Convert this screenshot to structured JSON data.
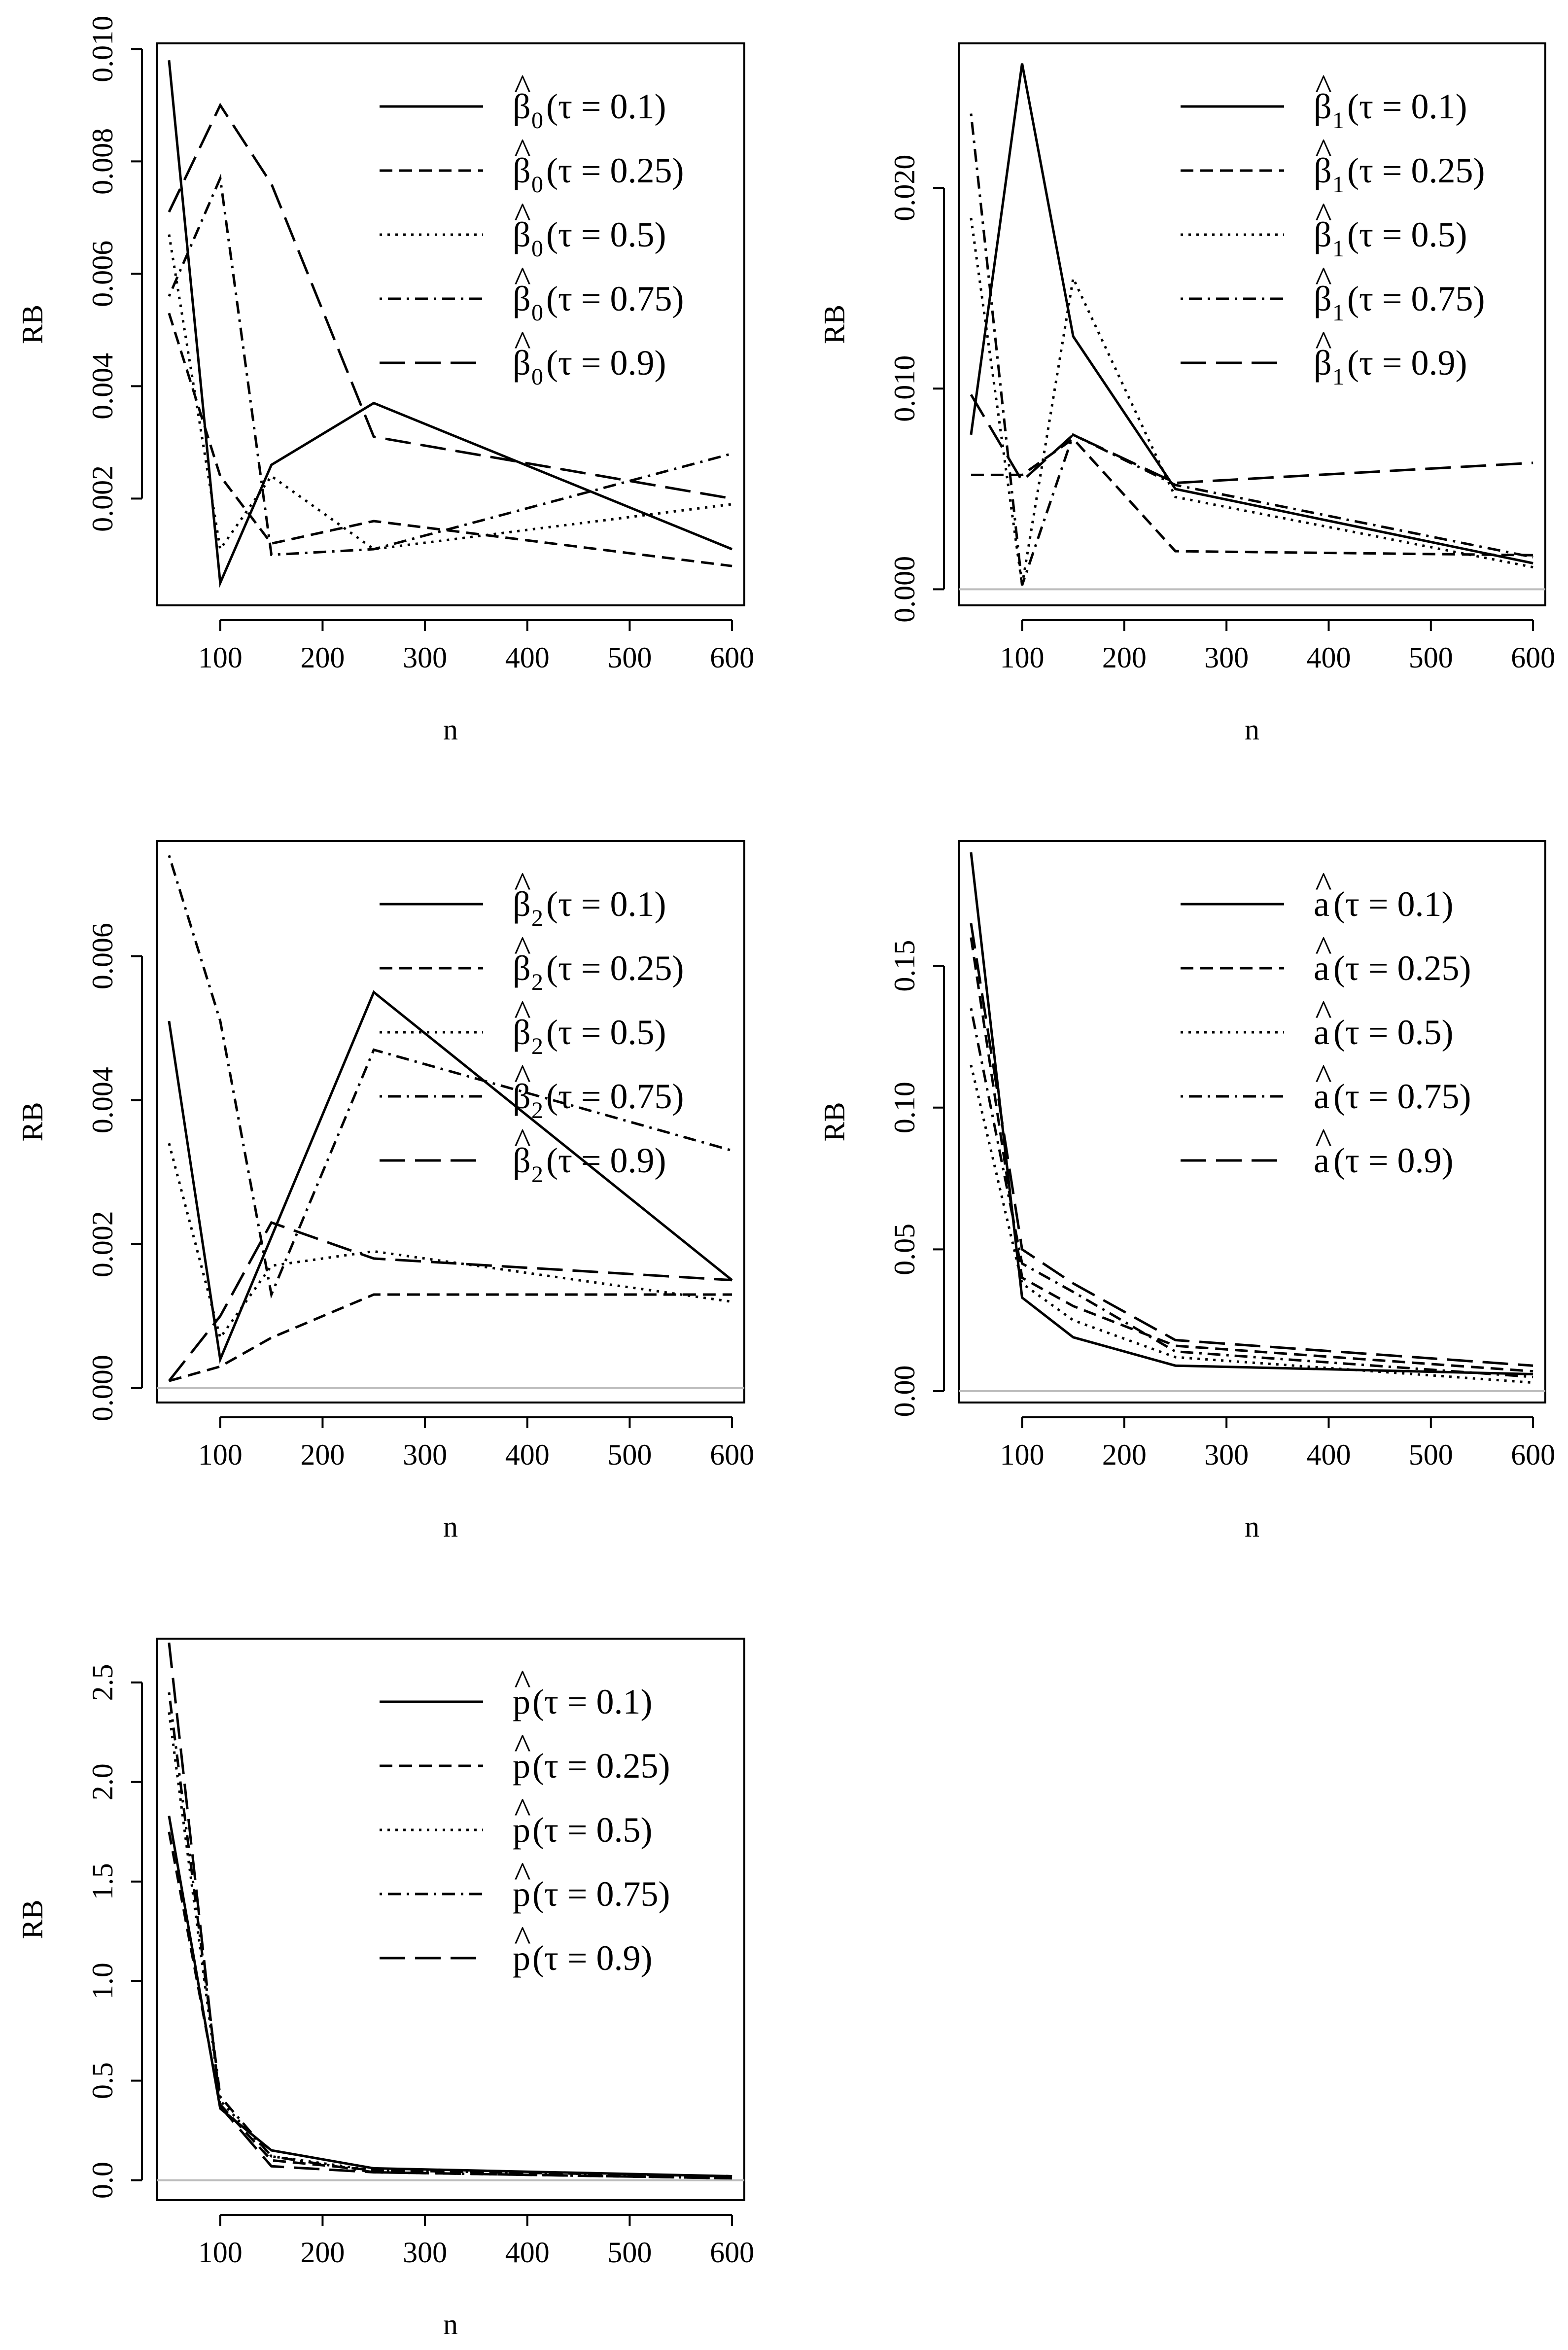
{
  "chart_data": [
    {
      "type": "line",
      "panel": "beta0",
      "xlabel": "n",
      "ylabel": "RB",
      "x": [
        50,
        100,
        150,
        250,
        600
      ],
      "xlim": [
        38,
        612
      ],
      "ylim": [
        0.0001,
        0.0101
      ],
      "xticks": [
        100,
        200,
        300,
        400,
        500,
        600
      ],
      "yticks": [
        0.002,
        0.004,
        0.006,
        0.008,
        0.01
      ],
      "ytick_labels": [
        "0.002",
        "0.004",
        "0.006",
        "0.008",
        "0.010"
      ],
      "zero_line": false,
      "legend_position": "top-right",
      "legend_symbol": "β",
      "legend_subscript": "0",
      "series": [
        {
          "name": "(τ = 0.1)",
          "style": "solid",
          "values": [
            0.0098,
            0.0005,
            0.0026,
            0.0037,
            0.0011
          ]
        },
        {
          "name": "(τ = 0.25)",
          "style": "dashed",
          "values": [
            0.0053,
            0.0024,
            0.0012,
            0.0016,
            0.0008
          ]
        },
        {
          "name": "(τ = 0.5)",
          "style": "dotted",
          "values": [
            0.0067,
            0.0011,
            0.0024,
            0.0011,
            0.0019
          ]
        },
        {
          "name": "(τ = 0.75)",
          "style": "dotdash",
          "values": [
            0.0056,
            0.0077,
            0.001,
            0.0011,
            0.0028
          ]
        },
        {
          "name": "(τ = 0.9)",
          "style": "longdash",
          "values": [
            0.0071,
            0.009,
            0.0076,
            0.0031,
            0.002
          ]
        }
      ]
    },
    {
      "type": "line",
      "panel": "beta1",
      "xlabel": "n",
      "ylabel": "RB",
      "x": [
        50,
        100,
        150,
        250,
        600
      ],
      "xlim": [
        38,
        612
      ],
      "ylim": [
        -0.0008,
        0.0272
      ],
      "xticks": [
        100,
        200,
        300,
        400,
        500,
        600
      ],
      "yticks": [
        0.0,
        0.01,
        0.02
      ],
      "ytick_labels": [
        "0.000",
        "0.010",
        "0.020"
      ],
      "zero_line": true,
      "legend_position": "top-right",
      "legend_symbol": "β",
      "legend_subscript": "1",
      "series": [
        {
          "name": "(τ = 0.1)",
          "style": "solid",
          "values": [
            0.0077,
            0.0262,
            0.0126,
            0.005,
            0.0013
          ]
        },
        {
          "name": "(τ = 0.25)",
          "style": "dashed",
          "values": [
            0.0057,
            0.0057,
            0.0075,
            0.0019,
            0.0017
          ]
        },
        {
          "name": "(τ = 0.5)",
          "style": "dotted",
          "values": [
            0.0185,
            0.0002,
            0.0155,
            0.0046,
            0.0011
          ]
        },
        {
          "name": "(τ = 0.75)",
          "style": "dotdash",
          "values": [
            0.0237,
            0.0002,
            0.0077,
            0.0052,
            0.0016
          ]
        },
        {
          "name": "(τ = 0.9)",
          "style": "longdash",
          "values": [
            0.0097,
            0.0054,
            0.0077,
            0.0053,
            0.0063
          ]
        }
      ]
    },
    {
      "type": "line",
      "panel": "beta2",
      "xlabel": "n",
      "ylabel": "RB",
      "x": [
        50,
        100,
        150,
        250,
        600
      ],
      "xlim": [
        38,
        612
      ],
      "ylim": [
        -0.0002,
        0.0076
      ],
      "xticks": [
        100,
        200,
        300,
        400,
        500,
        600
      ],
      "yticks": [
        0.0,
        0.002,
        0.004,
        0.006
      ],
      "ytick_labels": [
        "0.000",
        "0.002",
        "0.004",
        "0.006"
      ],
      "zero_line": true,
      "legend_position": "top-right",
      "legend_symbol": "β",
      "legend_subscript": "2",
      "series": [
        {
          "name": "(τ = 0.1)",
          "style": "solid",
          "values": [
            0.0051,
            0.0004,
            0.0021,
            0.0055,
            0.0015
          ]
        },
        {
          "name": "(τ = 0.25)",
          "style": "dashed",
          "values": [
            0.0001,
            0.0003,
            0.0007,
            0.0013,
            0.0013
          ]
        },
        {
          "name": "(τ = 0.5)",
          "style": "dotted",
          "values": [
            0.0034,
            0.0007,
            0.0017,
            0.0019,
            0.0012
          ]
        },
        {
          "name": "(τ = 0.75)",
          "style": "dotdash",
          "values": [
            0.0074,
            0.0051,
            0.0013,
            0.0047,
            0.0033
          ]
        },
        {
          "name": "(τ = 0.9)",
          "style": "longdash",
          "values": [
            0.0001,
            0.001,
            0.0023,
            0.0018,
            0.0015
          ]
        }
      ]
    },
    {
      "type": "line",
      "panel": "a",
      "xlabel": "n",
      "ylabel": "RB",
      "x": [
        50,
        100,
        150,
        250,
        600
      ],
      "xlim": [
        38,
        612
      ],
      "ylim": [
        -0.004,
        0.194
      ],
      "xticks": [
        100,
        200,
        300,
        400,
        500,
        600
      ],
      "yticks": [
        0.0,
        0.05,
        0.1,
        0.15
      ],
      "ytick_labels": [
        "0.00",
        "0.05",
        "0.10",
        "0.15"
      ],
      "zero_line": true,
      "legend_position": "top-right",
      "legend_symbol": "a",
      "legend_subscript": "",
      "series": [
        {
          "name": "(τ = 0.1)",
          "style": "solid",
          "values": [
            0.19,
            0.033,
            0.019,
            0.009,
            0.006
          ]
        },
        {
          "name": "(τ = 0.25)",
          "style": "dashed",
          "values": [
            0.16,
            0.04,
            0.03,
            0.016,
            0.007
          ]
        },
        {
          "name": "(τ = 0.5)",
          "style": "dotted",
          "values": [
            0.115,
            0.038,
            0.025,
            0.012,
            0.003
          ]
        },
        {
          "name": "(τ = 0.75)",
          "style": "dotdash",
          "values": [
            0.135,
            0.045,
            0.035,
            0.014,
            0.005
          ]
        },
        {
          "name": "(τ = 0.9)",
          "style": "longdash",
          "values": [
            0.165,
            0.05,
            0.038,
            0.018,
            0.009
          ]
        }
      ]
    },
    {
      "type": "line",
      "panel": "p",
      "xlabel": "n",
      "ylabel": "RB",
      "x": [
        50,
        100,
        150,
        250,
        600
      ],
      "xlim": [
        38,
        612
      ],
      "ylim": [
        -0.1,
        2.72
      ],
      "xticks": [
        100,
        200,
        300,
        400,
        500,
        600
      ],
      "yticks": [
        0.0,
        0.5,
        1.0,
        1.5,
        2.0,
        2.5
      ],
      "ytick_labels": [
        "0.0",
        "0.5",
        "1.0",
        "1.5",
        "2.0",
        "2.5"
      ],
      "zero_line": true,
      "legend_position": "top-right",
      "legend_symbol": "p",
      "legend_subscript": "",
      "series": [
        {
          "name": "(τ = 0.1)",
          "style": "solid",
          "values": [
            1.83,
            0.36,
            0.15,
            0.06,
            0.02
          ]
        },
        {
          "name": "(τ = 0.25)",
          "style": "dashed",
          "values": [
            1.75,
            0.38,
            0.1,
            0.05,
            0.02
          ]
        },
        {
          "name": "(τ = 0.5)",
          "style": "dotted",
          "values": [
            2.35,
            0.4,
            0.12,
            0.05,
            0.02
          ]
        },
        {
          "name": "(τ = 0.75)",
          "style": "dotdash",
          "values": [
            2.45,
            0.42,
            0.12,
            0.04,
            0.01
          ]
        },
        {
          "name": "(τ = 0.9)",
          "style": "longdash",
          "values": [
            2.7,
            0.37,
            0.07,
            0.04,
            0.01
          ]
        }
      ]
    }
  ]
}
